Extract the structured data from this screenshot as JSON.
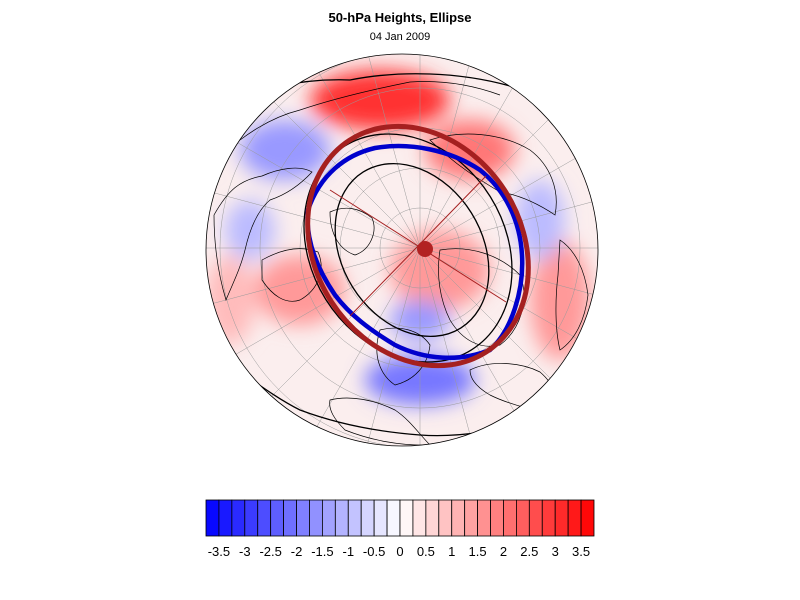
{
  "header": {
    "title": "50-hPa Heights, Ellipse",
    "date": "04 Jan 2009"
  },
  "colors": {
    "negative_max": "#0000ff",
    "positive_max": "#ff0000",
    "neutral": "#ffffff",
    "ellipse": "#a52020",
    "contour_blue": "#0000cc",
    "coast": "#000000"
  },
  "colorbar": {
    "min": -3.75,
    "max": 3.75,
    "step": 0.25,
    "labels": [
      "-3.5",
      "-3",
      "-2.5",
      "-2",
      "-1.5",
      "-1",
      "-0.5",
      "0",
      "0.5",
      "1",
      "1.5",
      "2",
      "2.5",
      "3",
      "3.5"
    ],
    "label_values": [
      -3.5,
      -3,
      -2.5,
      -2,
      -1.5,
      -1,
      -0.5,
      0,
      0.5,
      1,
      1.5,
      2,
      2.5,
      3,
      3.5
    ]
  },
  "map": {
    "projection": "polar-stereographic",
    "hemisphere": "north",
    "anomaly_patches": [
      {
        "sign": "positive",
        "level": 3.0
      },
      {
        "sign": "positive",
        "level": 2.0
      },
      {
        "sign": "positive",
        "level": 1.5
      },
      {
        "sign": "positive",
        "level": 1.5
      },
      {
        "sign": "positive",
        "level": 1.0
      },
      {
        "sign": "positive",
        "level": 1.5
      },
      {
        "sign": "negative",
        "level": -1.5
      },
      {
        "sign": "negative",
        "level": -2.0
      },
      {
        "sign": "negative",
        "level": -1.0
      },
      {
        "sign": "negative",
        "level": -1.0
      },
      {
        "sign": "negative",
        "level": -1.5
      }
    ]
  }
}
